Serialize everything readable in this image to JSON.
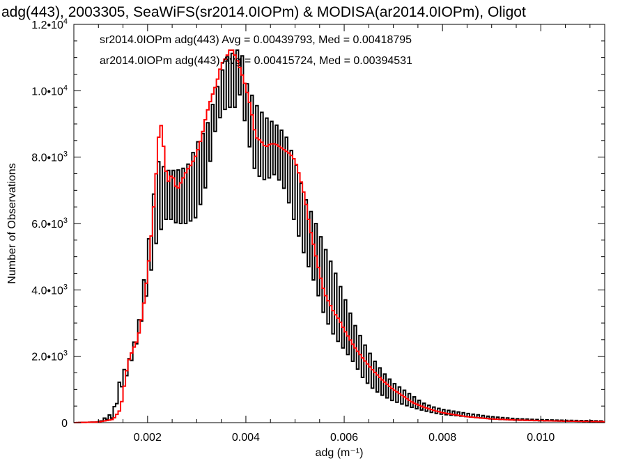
{
  "chart_data": {
    "type": "line",
    "title": "adg(443), 2003305, SeaWiFS(sr2014.0IOPm) & MODISA(ar2014.0IOPm), Oligot",
    "xlabel": "adg (m⁻¹)",
    "ylabel": "Number of Observations",
    "xlim": [
      0.0005,
      0.0113
    ],
    "ylim": [
      0,
      12000
    ],
    "xticks": [
      0.002,
      0.004,
      0.006,
      0.008,
      0.01
    ],
    "xtick_labels": [
      "0.002",
      "0.004",
      "0.006",
      "0.008",
      "0.010"
    ],
    "yticks": [
      0,
      2000,
      4000,
      6000,
      8000,
      10000,
      12000
    ],
    "ytick_labels": [
      {
        "mant": "0",
        "exp": ""
      },
      {
        "mant": "2.0•10",
        "exp": "3"
      },
      {
        "mant": "4.0•10",
        "exp": "3"
      },
      {
        "mant": "6.0•10",
        "exp": "3"
      },
      {
        "mant": "8.0•10",
        "exp": "3"
      },
      {
        "mant": "1.0•10",
        "exp": "4"
      },
      {
        "mant": "1.2•10",
        "exp": "4"
      }
    ],
    "legend": [
      {
        "text": "sr2014.0IOPm adg(443) Avg = 0.00439793, Med = 0.00418795",
        "color": "#000000"
      },
      {
        "text": "ar2014.0IOPm adg(443) Avg = 0.00415724, Med = 0.00394531",
        "color": "#ff0000"
      }
    ],
    "legend_placement": "top-left",
    "series": [
      {
        "name": "sr2014.0IOPm",
        "color": "#000000",
        "style": "step-oscillating",
        "envelope_x": [
          0.0005,
          0.001,
          0.0013,
          0.00145,
          0.0016,
          0.0018,
          0.002,
          0.0022,
          0.0024,
          0.0026,
          0.0028,
          0.003,
          0.0032,
          0.0034,
          0.0036,
          0.0038,
          0.0039,
          0.004,
          0.0042,
          0.0044,
          0.0046,
          0.0048,
          0.005,
          0.0052,
          0.0054,
          0.0056,
          0.0058,
          0.006,
          0.0062,
          0.0064,
          0.0066,
          0.0068,
          0.007,
          0.0072,
          0.0074,
          0.0076,
          0.0078,
          0.008,
          0.0085,
          0.009,
          0.0095,
          0.01,
          0.0105,
          0.011,
          0.0113
        ],
        "envelope_low": [
          0,
          20,
          150,
          1000,
          1500,
          2500,
          4000,
          5600,
          6200,
          6000,
          6000,
          6200,
          7200,
          9000,
          9500,
          9500,
          10000,
          8800,
          7500,
          7300,
          7500,
          7000,
          6000,
          5000,
          4200,
          3200,
          2600,
          2200,
          1800,
          1300,
          1000,
          800,
          650,
          550,
          450,
          370,
          300,
          250,
          180,
          110,
          75,
          55,
          45,
          35,
          30
        ],
        "envelope_high": [
          0,
          20,
          300,
          1400,
          1800,
          2800,
          5200,
          7900,
          7600,
          7600,
          7700,
          8400,
          8900,
          10000,
          11000,
          11200,
          11300,
          10300,
          9600,
          9200,
          9000,
          8700,
          7900,
          6800,
          6100,
          5300,
          4600,
          3800,
          3000,
          2400,
          1900,
          1500,
          1200,
          1000,
          800,
          600,
          480,
          400,
          280,
          180,
          120,
          90,
          70,
          60,
          50
        ]
      },
      {
        "name": "ar2014.0IOPm",
        "color": "#ff0000",
        "style": "step",
        "x": [
          0.0005,
          0.001,
          0.0013,
          0.00145,
          0.0016,
          0.0017,
          0.0018,
          0.0019,
          0.002,
          0.0021,
          0.0022,
          0.00225,
          0.0023,
          0.0024,
          0.0025,
          0.0026,
          0.0027,
          0.0028,
          0.0029,
          0.003,
          0.0031,
          0.0032,
          0.0033,
          0.0034,
          0.0035,
          0.0036,
          0.0037,
          0.0038,
          0.0039,
          0.004,
          0.0041,
          0.0042,
          0.0043,
          0.0044,
          0.0045,
          0.0046,
          0.0047,
          0.0048,
          0.0049,
          0.005,
          0.0051,
          0.0052,
          0.0053,
          0.0054,
          0.0055,
          0.0056,
          0.0057,
          0.0058,
          0.0059,
          0.006,
          0.0062,
          0.0064,
          0.0066,
          0.0068,
          0.007,
          0.0072,
          0.0074,
          0.0076,
          0.0078,
          0.008,
          0.0082,
          0.0085,
          0.009,
          0.0095,
          0.01,
          0.0105,
          0.011,
          0.0113
        ],
        "y": [
          0,
          20,
          100,
          400,
          1800,
          2200,
          2500,
          3300,
          4500,
          6000,
          8000,
          9200,
          8700,
          7200,
          7500,
          7000,
          7300,
          7600,
          7800,
          8100,
          8600,
          9300,
          9800,
          10200,
          10800,
          11000,
          11300,
          11000,
          10600,
          10100,
          9500,
          8600,
          8500,
          8300,
          8400,
          8400,
          8300,
          8200,
          8100,
          7900,
          7400,
          6800,
          5900,
          5200,
          4500,
          3900,
          3600,
          3300,
          3100,
          2800,
          2300,
          1900,
          1550,
          1250,
          1000,
          800,
          600,
          480,
          380,
          300,
          250,
          180,
          110,
          80,
          60,
          45,
          35,
          30
        ]
      }
    ]
  }
}
